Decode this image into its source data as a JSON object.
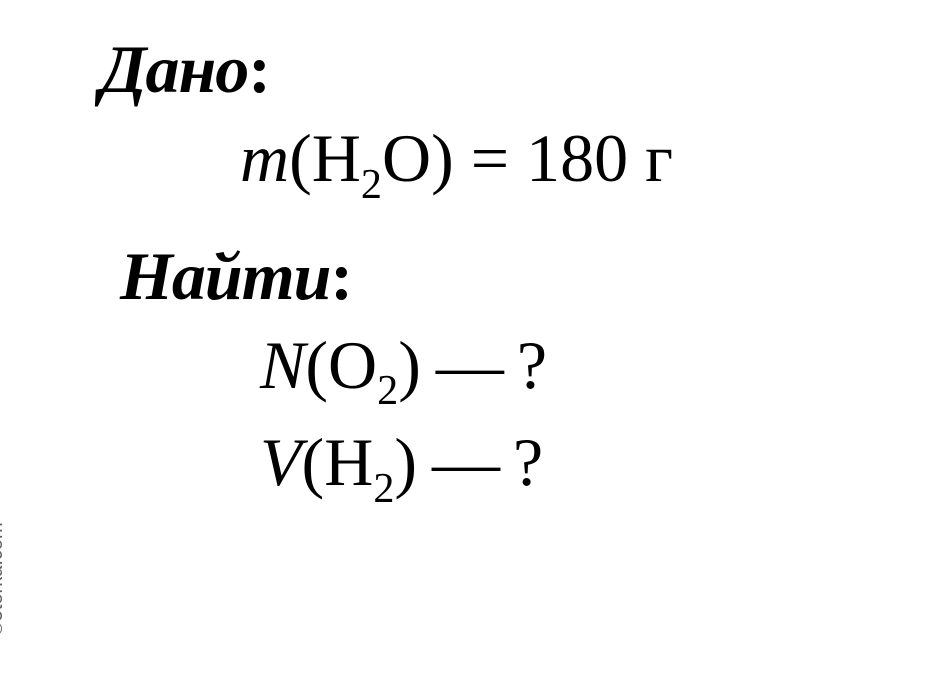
{
  "given": {
    "header_label": "Дано",
    "colon": ":",
    "formula": {
      "variable": "m",
      "open_paren": "(",
      "element1": "H",
      "sub1": "2",
      "element2": "O",
      "close_paren": ")",
      "equals": " = ",
      "value": "180",
      "unit": " г"
    }
  },
  "find": {
    "header_label": "Найти",
    "colon": ":",
    "line1": {
      "variable": "N",
      "open_paren": "(",
      "element": "O",
      "sub": "2",
      "close_paren": ")",
      "dash": " — ",
      "question": "?"
    },
    "line2": {
      "variable": "V",
      "open_paren": "(",
      "element": "H",
      "sub": "2",
      "close_paren": ")",
      "dash": " — ",
      "question": "?"
    }
  },
  "watermark": "©5terka.com",
  "styling": {
    "background_color": "#ffffff",
    "text_color": "#000000",
    "header_fontsize": 68,
    "formula_fontsize": 68,
    "watermark_fontsize": 20,
    "watermark_color": "#606060"
  }
}
